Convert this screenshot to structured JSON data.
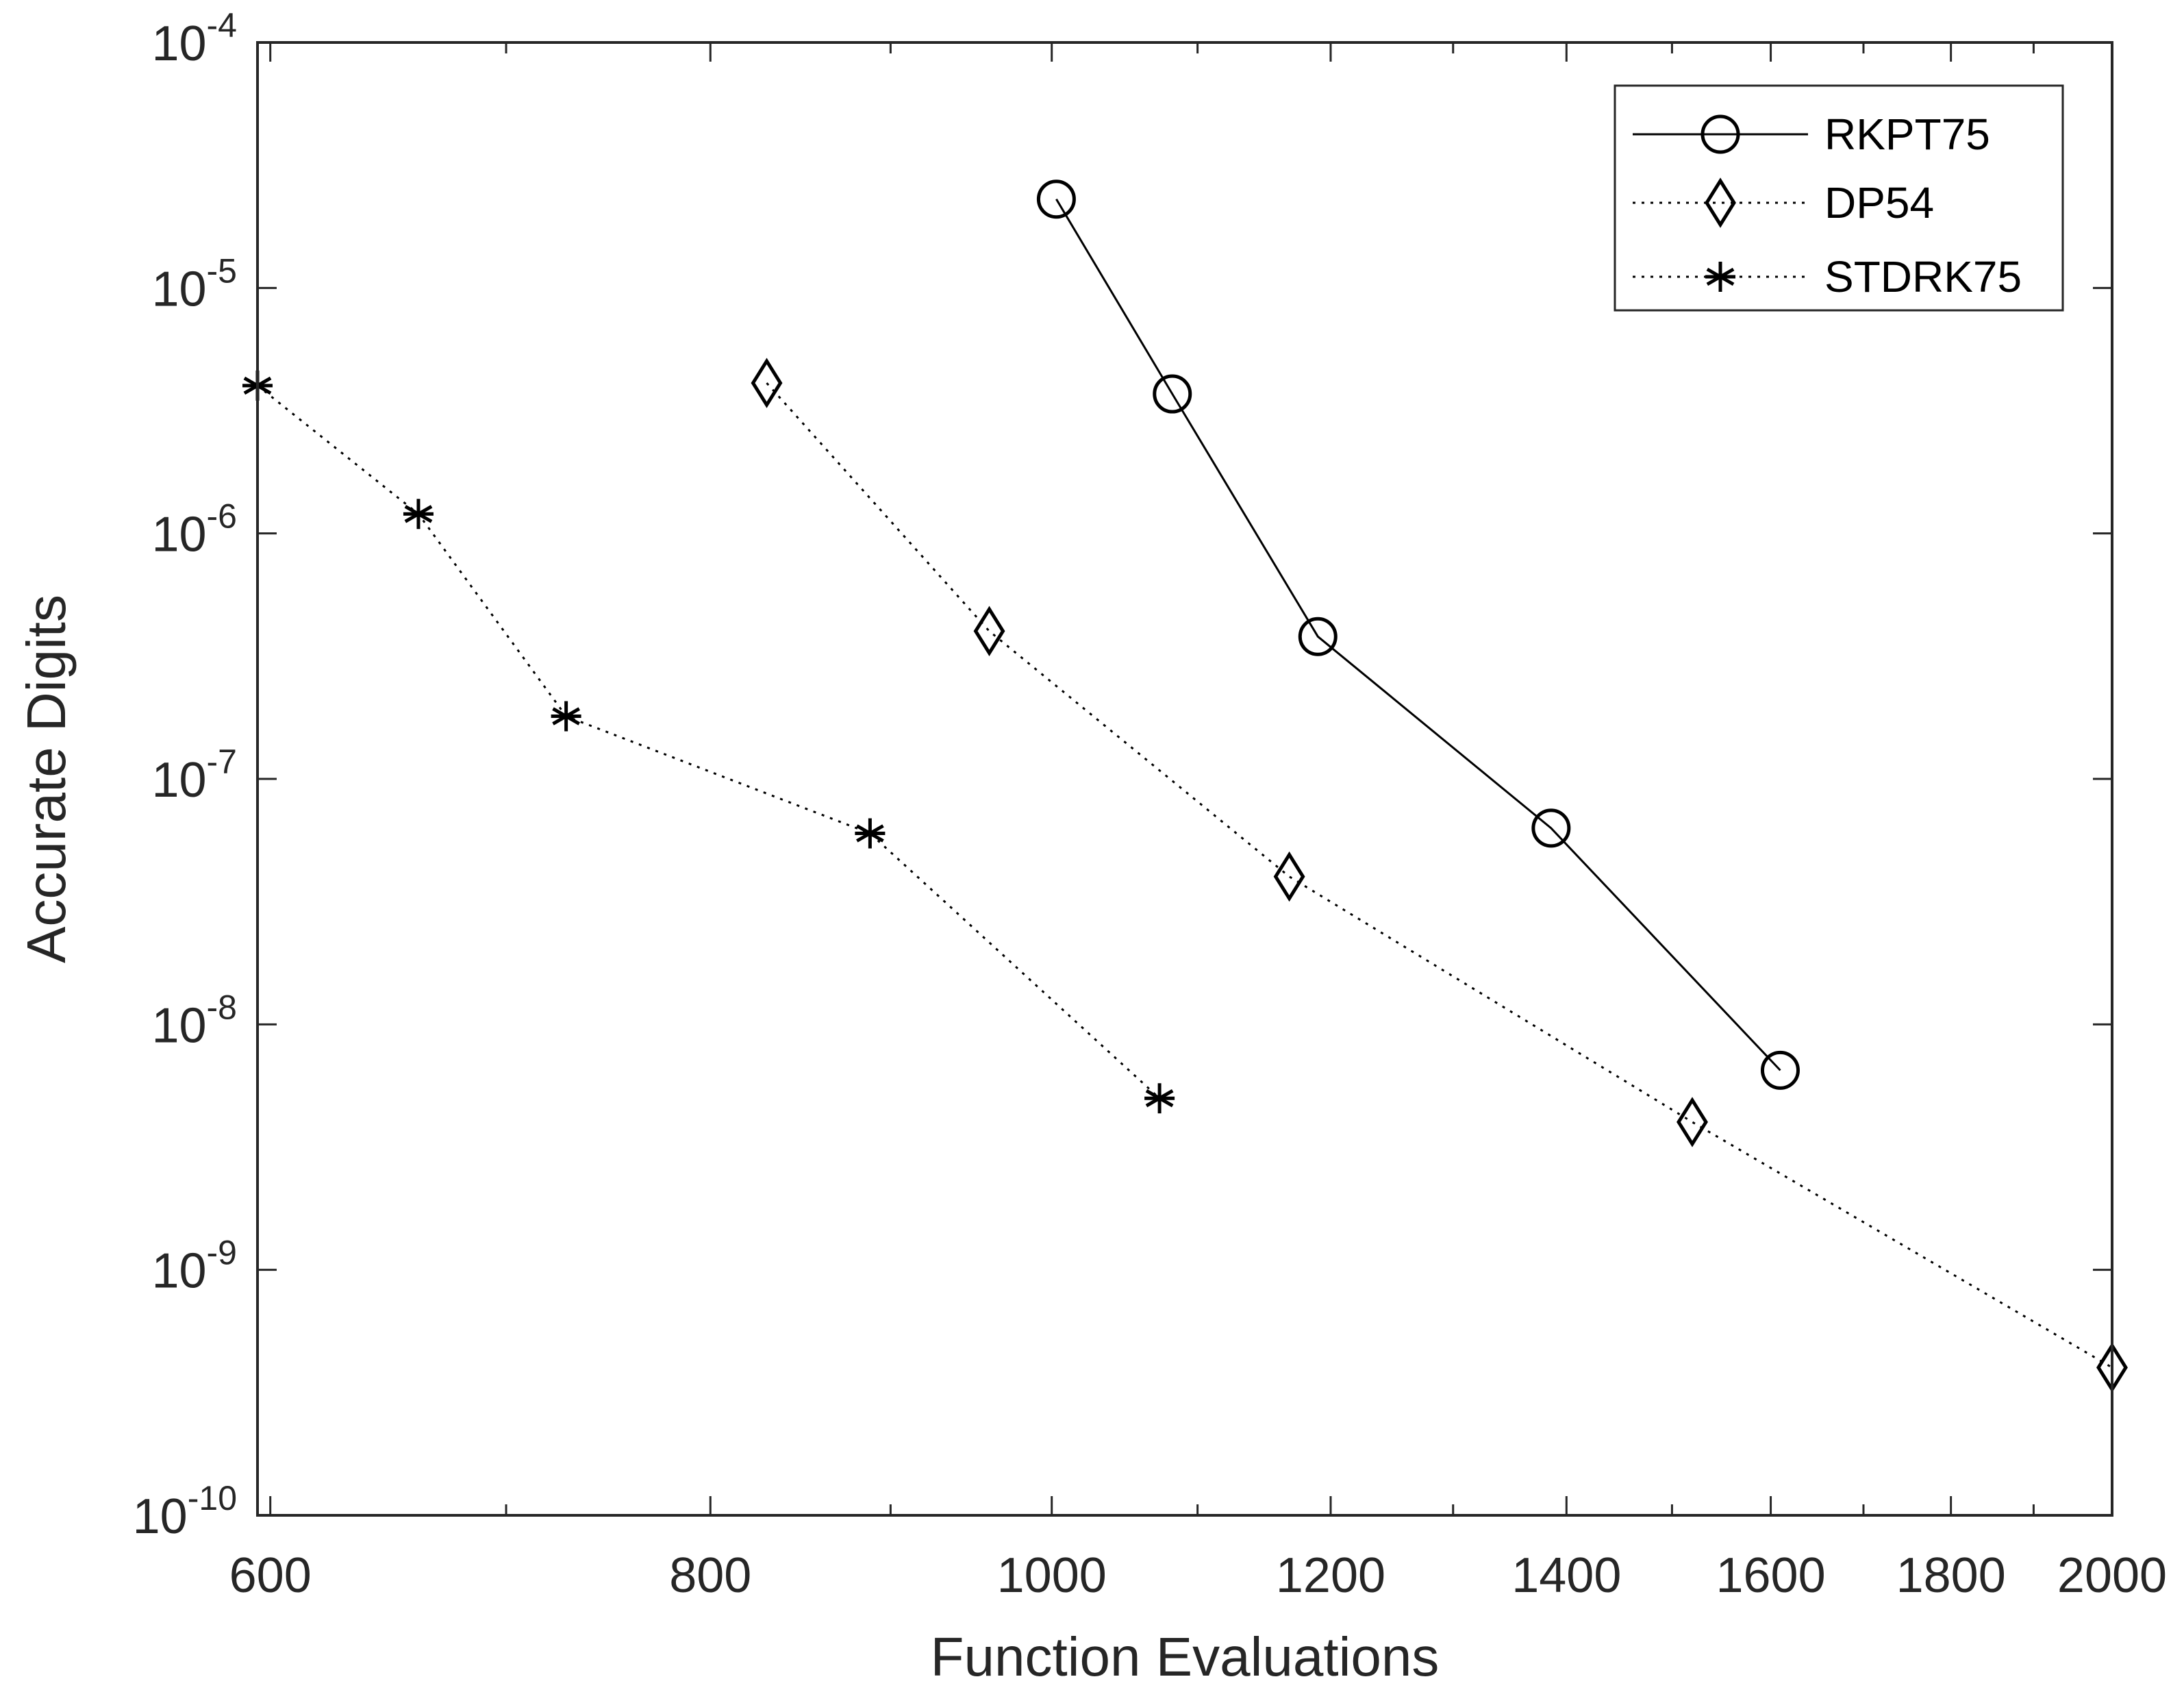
{
  "chart_data": {
    "type": "line",
    "xscale": "log",
    "yscale": "log",
    "xlabel": "Function Evaluations",
    "ylabel": "Accurate Digits",
    "xlim": [
      595,
      2000
    ],
    "ylim": [
      1e-10,
      0.0001
    ],
    "xticks": [
      600,
      800,
      1000,
      1200,
      1400,
      1600,
      1800,
      2000
    ],
    "xtick_labels": [
      "600",
      "800",
      "1000",
      "1200",
      "1400",
      "1600",
      "1800",
      "2000"
    ],
    "yticks": [
      1e-10,
      1e-09,
      1e-08,
      1e-07,
      1e-06,
      1e-05,
      0.0001
    ],
    "ytick_labels": [
      {
        "base": "10",
        "exp": "-10"
      },
      {
        "base": "10",
        "exp": "-9"
      },
      {
        "base": "10",
        "exp": "-8"
      },
      {
        "base": "10",
        "exp": "-7"
      },
      {
        "base": "10",
        "exp": "-6"
      },
      {
        "base": "10",
        "exp": "-5"
      },
      {
        "base": "10",
        "exp": "-4"
      }
    ],
    "grid": false,
    "legend_position": "top-right",
    "series": [
      {
        "name": "RKPT75",
        "line": "solid",
        "marker": "circle",
        "x": [
          1003,
          1082,
          1190,
          1386,
          1610
        ],
        "y": [
          2.3e-05,
          3.7e-06,
          3.8e-07,
          6.3e-08,
          6.5e-09
        ]
      },
      {
        "name": "DP54",
        "line": "dotted",
        "marker": "diamond",
        "x": [
          830,
          960,
          1168,
          1520,
          2000
        ],
        "y": [
          4.1e-06,
          4e-07,
          4e-08,
          4e-09,
          4e-10
        ]
      },
      {
        "name": "STDRK75",
        "line": "dotted",
        "marker": "asterisk",
        "x": [
          595,
          661,
          728,
          888,
          1073
        ],
        "y": [
          4e-06,
          1.2e-06,
          1.8e-07,
          6e-08,
          5e-09
        ]
      }
    ]
  }
}
